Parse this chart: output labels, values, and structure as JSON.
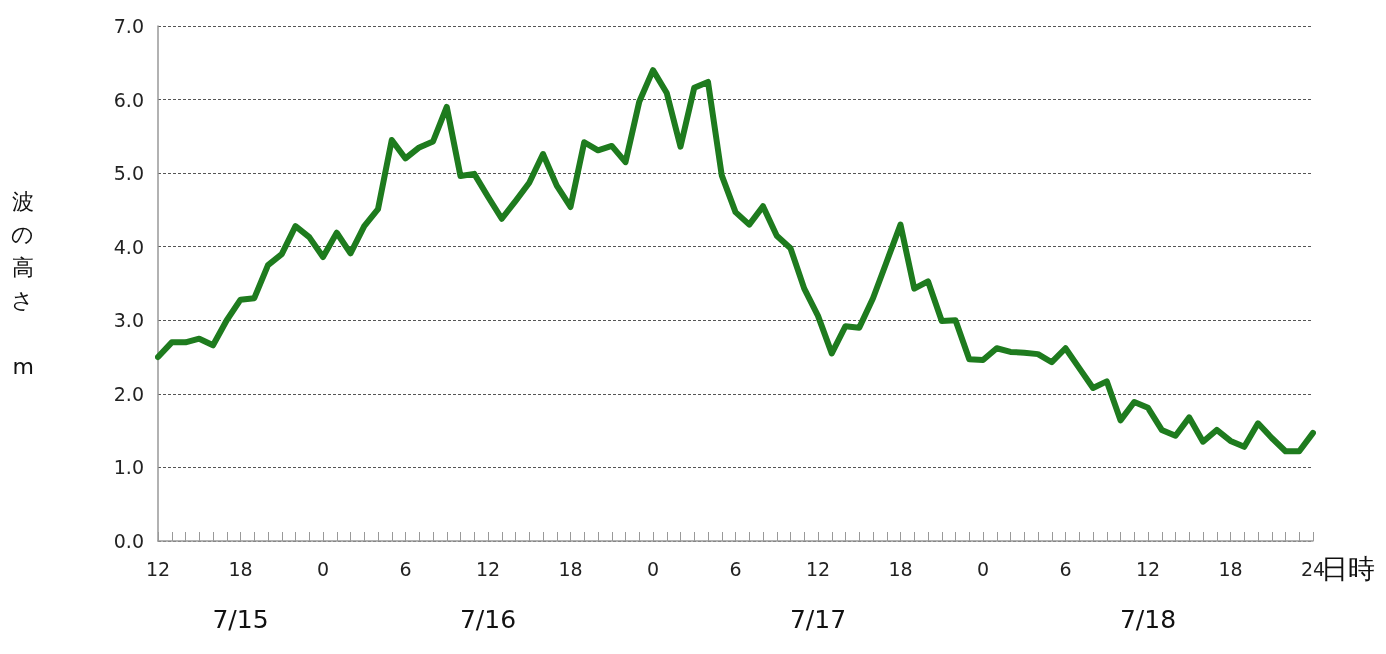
{
  "chart_data": {
    "type": "line",
    "xlabel": "日時",
    "ylabel": "波の高さ m",
    "x": [
      "--07-15T12:00",
      "--07-15T13:00",
      "--07-15T14:00",
      "--07-15T15:00",
      "--07-15T16:00",
      "--07-15T17:00",
      "--07-15T18:00",
      "--07-15T19:00",
      "--07-15T20:00",
      "--07-15T21:00",
      "--07-15T22:00",
      "--07-15T23:00",
      "--07-16T00:00",
      "--07-16T01:00",
      "--07-16T02:00",
      "--07-16T03:00",
      "--07-16T04:00",
      "--07-16T05:00",
      "--07-16T06:00",
      "--07-16T07:00",
      "--07-16T08:00",
      "--07-16T09:00",
      "--07-16T10:00",
      "--07-16T11:00",
      "--07-16T12:00",
      "--07-16T13:00",
      "--07-16T14:00",
      "--07-16T15:00",
      "--07-16T16:00",
      "--07-16T17:00",
      "--07-16T18:00",
      "--07-16T19:00",
      "--07-16T20:00",
      "--07-16T21:00",
      "--07-16T22:00",
      "--07-16T23:00",
      "--07-17T00:00",
      "--07-17T01:00",
      "--07-17T02:00",
      "--07-17T03:00",
      "--07-17T04:00",
      "--07-17T05:00",
      "--07-17T06:00",
      "--07-17T07:00",
      "--07-17T08:00",
      "--07-17T09:00",
      "--07-17T10:00",
      "--07-17T11:00",
      "--07-17T12:00",
      "--07-17T13:00",
      "--07-17T14:00",
      "--07-17T15:00",
      "--07-17T16:00",
      "--07-17T17:00",
      "--07-17T18:00",
      "--07-17T19:00",
      "--07-17T20:00",
      "--07-17T21:00",
      "--07-17T22:00",
      "--07-17T23:00",
      "--07-18T00:00",
      "--07-18T01:00",
      "--07-18T02:00",
      "--07-18T03:00",
      "--07-18T04:00",
      "--07-18T05:00",
      "--07-18T06:00",
      "--07-18T07:00",
      "--07-18T08:00",
      "--07-18T09:00",
      "--07-18T10:00",
      "--07-18T11:00",
      "--07-18T12:00",
      "--07-18T13:00",
      "--07-18T14:00",
      "--07-18T15:00",
      "--07-18T16:00",
      "--07-18T17:00",
      "--07-18T18:00",
      "--07-18T19:00",
      "--07-18T20:00",
      "--07-18T21:00",
      "--07-18T22:00",
      "--07-18T23:00",
      "--07-19T00:00"
    ],
    "series": [
      {
        "color": "#1e7b1e",
        "values": [
          2.5,
          2.7,
          2.7,
          2.75,
          2.66,
          3.0,
          3.28,
          3.3,
          3.75,
          3.9,
          4.28,
          4.13,
          3.86,
          4.19,
          3.91,
          4.28,
          4.51,
          5.45,
          5.2,
          5.35,
          5.43,
          5.9,
          4.96,
          4.99,
          4.68,
          4.38,
          4.62,
          4.87,
          5.26,
          4.83,
          4.54,
          5.42,
          5.31,
          5.37,
          5.15,
          5.97,
          6.4,
          6.09,
          5.36,
          6.16,
          6.24,
          4.97,
          4.47,
          4.3,
          4.55,
          4.15,
          3.98,
          3.43,
          3.06,
          2.55,
          2.92,
          2.9,
          3.3,
          3.8,
          4.3,
          3.43,
          3.53,
          2.99,
          3.0,
          2.47,
          2.46,
          2.62,
          2.57,
          2.56,
          2.54,
          2.43,
          2.62,
          2.35,
          2.08,
          2.17,
          1.64,
          1.89,
          1.81,
          1.51,
          1.43,
          1.68,
          1.35,
          1.51,
          1.36,
          1.28,
          1.6,
          1.4,
          1.22,
          1.22,
          1.47
        ]
      }
    ],
    "xlim": [
      "--07-15T12:00",
      "--07-19T00:00"
    ],
    "xticks": [
      {
        "value": "--07-15T12:00",
        "label": "12"
      },
      {
        "value": "--07-15T13:00",
        "label": null
      },
      {
        "value": "--07-15T14:00",
        "label": null
      },
      {
        "value": "--07-15T15:00",
        "label": null
      },
      {
        "value": "--07-15T16:00",
        "label": null
      },
      {
        "value": "--07-15T17:00",
        "label": null
      },
      {
        "value": "--07-15T18:00",
        "label": "18"
      },
      {
        "value": "--07-15T19:00",
        "label": null
      },
      {
        "value": "--07-15T20:00",
        "label": null
      },
      {
        "value": "--07-15T21:00",
        "label": null
      },
      {
        "value": "--07-15T22:00",
        "label": null
      },
      {
        "value": "--07-15T23:00",
        "label": null
      },
      {
        "value": "--07-16T00:00",
        "label": "0"
      },
      {
        "value": "--07-16T01:00",
        "label": null
      },
      {
        "value": "--07-16T02:00",
        "label": null
      },
      {
        "value": "--07-16T03:00",
        "label": null
      },
      {
        "value": "--07-16T04:00",
        "label": null
      },
      {
        "value": "--07-16T05:00",
        "label": null
      },
      {
        "value": "--07-16T06:00",
        "label": "6"
      },
      {
        "value": "--07-16T07:00",
        "label": null
      },
      {
        "value": "--07-16T08:00",
        "label": null
      },
      {
        "value": "--07-16T09:00",
        "label": null
      },
      {
        "value": "--07-16T10:00",
        "label": null
      },
      {
        "value": "--07-16T11:00",
        "label": null
      },
      {
        "value": "--07-16T12:00",
        "label": "12"
      },
      {
        "value": "--07-16T13:00",
        "label": null
      },
      {
        "value": "--07-16T14:00",
        "label": null
      },
      {
        "value": "--07-16T15:00",
        "label": null
      },
      {
        "value": "--07-16T16:00",
        "label": null
      },
      {
        "value": "--07-16T17:00",
        "label": null
      },
      {
        "value": "--07-16T18:00",
        "label": "18"
      },
      {
        "value": "--07-16T19:00",
        "label": null
      },
      {
        "value": "--07-16T20:00",
        "label": null
      },
      {
        "value": "--07-16T21:00",
        "label": null
      },
      {
        "value": "--07-16T22:00",
        "label": null
      },
      {
        "value": "--07-16T23:00",
        "label": null
      },
      {
        "value": "--07-17T00:00",
        "label": "0"
      },
      {
        "value": "--07-17T01:00",
        "label": null
      },
      {
        "value": "--07-17T02:00",
        "label": null
      },
      {
        "value": "--07-17T03:00",
        "label": null
      },
      {
        "value": "--07-17T04:00",
        "label": null
      },
      {
        "value": "--07-17T05:00",
        "label": null
      },
      {
        "value": "--07-17T06:00",
        "label": "6"
      },
      {
        "value": "--07-17T07:00",
        "label": null
      },
      {
        "value": "--07-17T08:00",
        "label": null
      },
      {
        "value": "--07-17T09:00",
        "label": null
      },
      {
        "value": "--07-17T10:00",
        "label": null
      },
      {
        "value": "--07-17T11:00",
        "label": null
      },
      {
        "value": "--07-17T12:00",
        "label": "12"
      },
      {
        "value": "--07-17T13:00",
        "label": null
      },
      {
        "value": "--07-17T14:00",
        "label": null
      },
      {
        "value": "--07-17T15:00",
        "label": null
      },
      {
        "value": "--07-17T16:00",
        "label": null
      },
      {
        "value": "--07-17T17:00",
        "label": null
      },
      {
        "value": "--07-17T18:00",
        "label": "18"
      },
      {
        "value": "--07-17T19:00",
        "label": null
      },
      {
        "value": "--07-17T20:00",
        "label": null
      },
      {
        "value": "--07-17T21:00",
        "label": null
      },
      {
        "value": "--07-17T22:00",
        "label": null
      },
      {
        "value": "--07-17T23:00",
        "label": null
      },
      {
        "value": "--07-18T00:00",
        "label": "0"
      },
      {
        "value": "--07-18T01:00",
        "label": null
      },
      {
        "value": "--07-18T02:00",
        "label": null
      },
      {
        "value": "--07-18T03:00",
        "label": null
      },
      {
        "value": "--07-18T04:00",
        "label": null
      },
      {
        "value": "--07-18T05:00",
        "label": null
      },
      {
        "value": "--07-18T06:00",
        "label": "6"
      },
      {
        "value": "--07-18T07:00",
        "label": null
      },
      {
        "value": "--07-18T08:00",
        "label": null
      },
      {
        "value": "--07-18T09:00",
        "label": null
      },
      {
        "value": "--07-18T10:00",
        "label": null
      },
      {
        "value": "--07-18T11:00",
        "label": null
      },
      {
        "value": "--07-18T12:00",
        "label": "12"
      },
      {
        "value": "--07-18T13:00",
        "label": null
      },
      {
        "value": "--07-18T14:00",
        "label": null
      },
      {
        "value": "--07-18T15:00",
        "label": null
      },
      {
        "value": "--07-18T16:00",
        "label": null
      },
      {
        "value": "--07-18T17:00",
        "label": null
      },
      {
        "value": "--07-18T18:00",
        "label": "18"
      },
      {
        "value": "--07-18T19:00",
        "label": null
      },
      {
        "value": "--07-18T20:00",
        "label": null
      },
      {
        "value": "--07-18T21:00",
        "label": null
      },
      {
        "value": "--07-18T22:00",
        "label": null
      },
      {
        "value": "--07-18T23:00",
        "label": null
      },
      {
        "value": "--07-19T00:00",
        "label": "24"
      }
    ],
    "x2lim": [
      "--07-15T12:00",
      "--07-19T00:00"
    ],
    "x2ticks": [
      {
        "value": "--07-15T18:00",
        "label": "7/15"
      },
      {
        "value": "--07-16T12:00",
        "label": "7/16"
      },
      {
        "value": "--07-17T12:00",
        "label": "7/17"
      },
      {
        "value": "--07-18T12:00",
        "label": "7/18"
      }
    ],
    "ylim": [
      0,
      7
    ],
    "yticks": [
      {
        "value": 0,
        "label": "0.0"
      },
      {
        "value": 1,
        "label": "1.0"
      },
      {
        "value": 2,
        "label": "2.0"
      },
      {
        "value": 3,
        "label": "3.0"
      },
      {
        "value": 4,
        "label": "4.0"
      },
      {
        "value": 5,
        "label": "5.0"
      },
      {
        "value": 6,
        "label": "6.0"
      },
      {
        "value": 7,
        "label": "7.0"
      }
    ],
    "grid": "y",
    "marker": "none",
    "line_style": "solid"
  }
}
